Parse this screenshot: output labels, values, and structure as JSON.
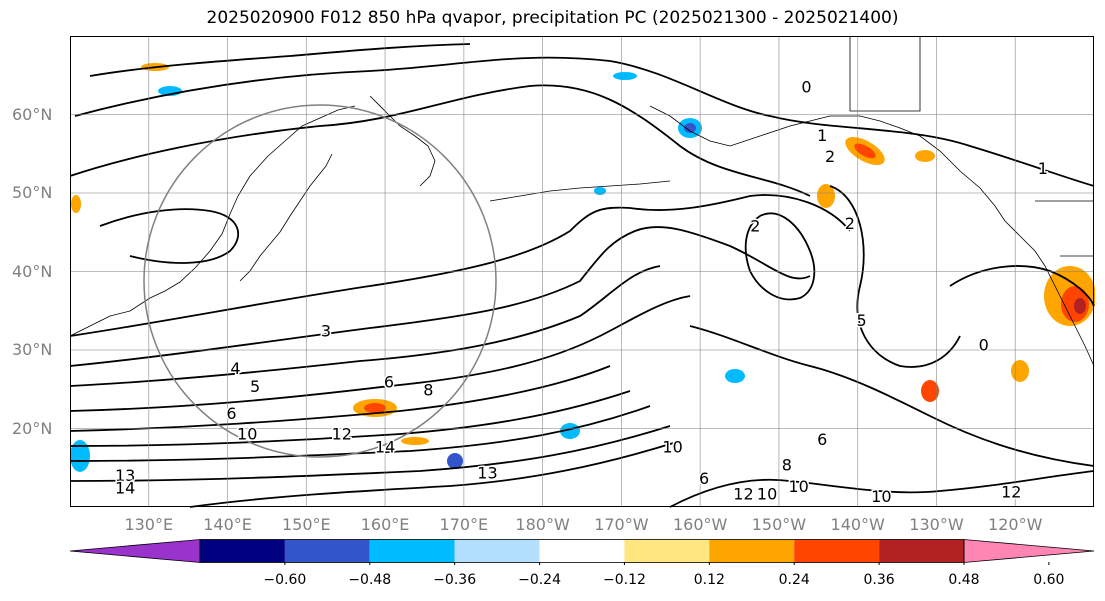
{
  "title": "2025020900 F012 850 hPa qvapor, precipitation PC (2025021300 - 2025021400)",
  "latitudes": [
    {
      "label": "60°N",
      "lat": 60
    },
    {
      "label": "50°N",
      "lat": 50
    },
    {
      "label": "40°N",
      "lat": 40
    },
    {
      "label": "30°N",
      "lat": 30
    },
    {
      "label": "20°N",
      "lat": 20
    }
  ],
  "longitudes": [
    {
      "label": "130°E",
      "lon": 130
    },
    {
      "label": "140°E",
      "lon": 140
    },
    {
      "label": "150°E",
      "lon": 150
    },
    {
      "label": "160°E",
      "lon": 160
    },
    {
      "label": "170°E",
      "lon": 170
    },
    {
      "label": "180°W",
      "lon": 180
    },
    {
      "label": "170°W",
      "lon": 190
    },
    {
      "label": "160°W",
      "lon": 200
    },
    {
      "label": "150°W",
      "lon": 210
    },
    {
      "label": "140°W",
      "lon": 220
    },
    {
      "label": "130°W",
      "lon": 230
    },
    {
      "label": "120°W",
      "lon": 240
    }
  ],
  "extent": {
    "lon_min": 120,
    "lon_max": 250,
    "lat_min": 10,
    "lat_max": 70
  },
  "contour_labels": [
    {
      "text": "0",
      "lon": 213.5,
      "lat": 63.4
    },
    {
      "text": "1",
      "lon": 215.5,
      "lat": 57.2
    },
    {
      "text": "2",
      "lon": 216.5,
      "lat": 54.5
    },
    {
      "text": "1",
      "lon": 243.5,
      "lat": 53.0
    },
    {
      "text": "2",
      "lon": 219,
      "lat": 46
    },
    {
      "text": "2",
      "lon": 207,
      "lat": 45.7
    },
    {
      "text": "5",
      "lon": 220.5,
      "lat": 33.6
    },
    {
      "text": "0",
      "lon": 236,
      "lat": 30.5
    },
    {
      "text": "3",
      "lon": 152.5,
      "lat": 32.3
    },
    {
      "text": "4",
      "lon": 141,
      "lat": 27.5
    },
    {
      "text": "5",
      "lon": 143.5,
      "lat": 25.2
    },
    {
      "text": "6",
      "lon": 160.5,
      "lat": 25.8
    },
    {
      "text": "8",
      "lon": 165.5,
      "lat": 24.8
    },
    {
      "text": "6",
      "lon": 140.5,
      "lat": 21.8
    },
    {
      "text": "10",
      "lon": 142.5,
      "lat": 19.2
    },
    {
      "text": "12",
      "lon": 154.5,
      "lat": 19.2
    },
    {
      "text": "14",
      "lon": 160,
      "lat": 17.5
    },
    {
      "text": "13",
      "lon": 127,
      "lat": 13.9
    },
    {
      "text": "14",
      "lon": 127,
      "lat": 12.3
    },
    {
      "text": "13",
      "lon": 173,
      "lat": 14.2
    },
    {
      "text": "10",
      "lon": 196.5,
      "lat": 17.5
    },
    {
      "text": "6",
      "lon": 200.5,
      "lat": 13.5
    },
    {
      "text": "8",
      "lon": 211,
      "lat": 15.2
    },
    {
      "text": "10",
      "lon": 212.5,
      "lat": 12.5
    },
    {
      "text": "6",
      "lon": 215.5,
      "lat": 18.5
    },
    {
      "text": "10",
      "lon": 223,
      "lat": 11.2
    },
    {
      "text": "12",
      "lon": 239.5,
      "lat": 11.8
    },
    {
      "text": "12",
      "lon": 205.5,
      "lat": 11.5
    },
    {
      "text": "10",
      "lon": 208.5,
      "lat": 11.5
    }
  ],
  "colorbar": {
    "colors": [
      "#9933cc",
      "#000080",
      "#3355cc",
      "#00bbff",
      "#b3e0ff",
      "#ffffff",
      "#ffe680",
      "#ffa500",
      "#ff4500",
      "#b22222",
      "#ff85b3"
    ],
    "tick_labels": [
      "−0.60",
      "−0.48",
      "−0.36",
      "−0.24",
      "−0.12",
      "0.12",
      "0.24",
      "0.36",
      "0.48",
      "0.60"
    ],
    "tick_values": [
      -0.6,
      -0.48,
      -0.36,
      -0.24,
      -0.12,
      0.12,
      0.24,
      0.36,
      0.48,
      0.6
    ]
  },
  "colors": {
    "frame": "#000000",
    "grid": "#808080",
    "label_gray": "#808080"
  }
}
